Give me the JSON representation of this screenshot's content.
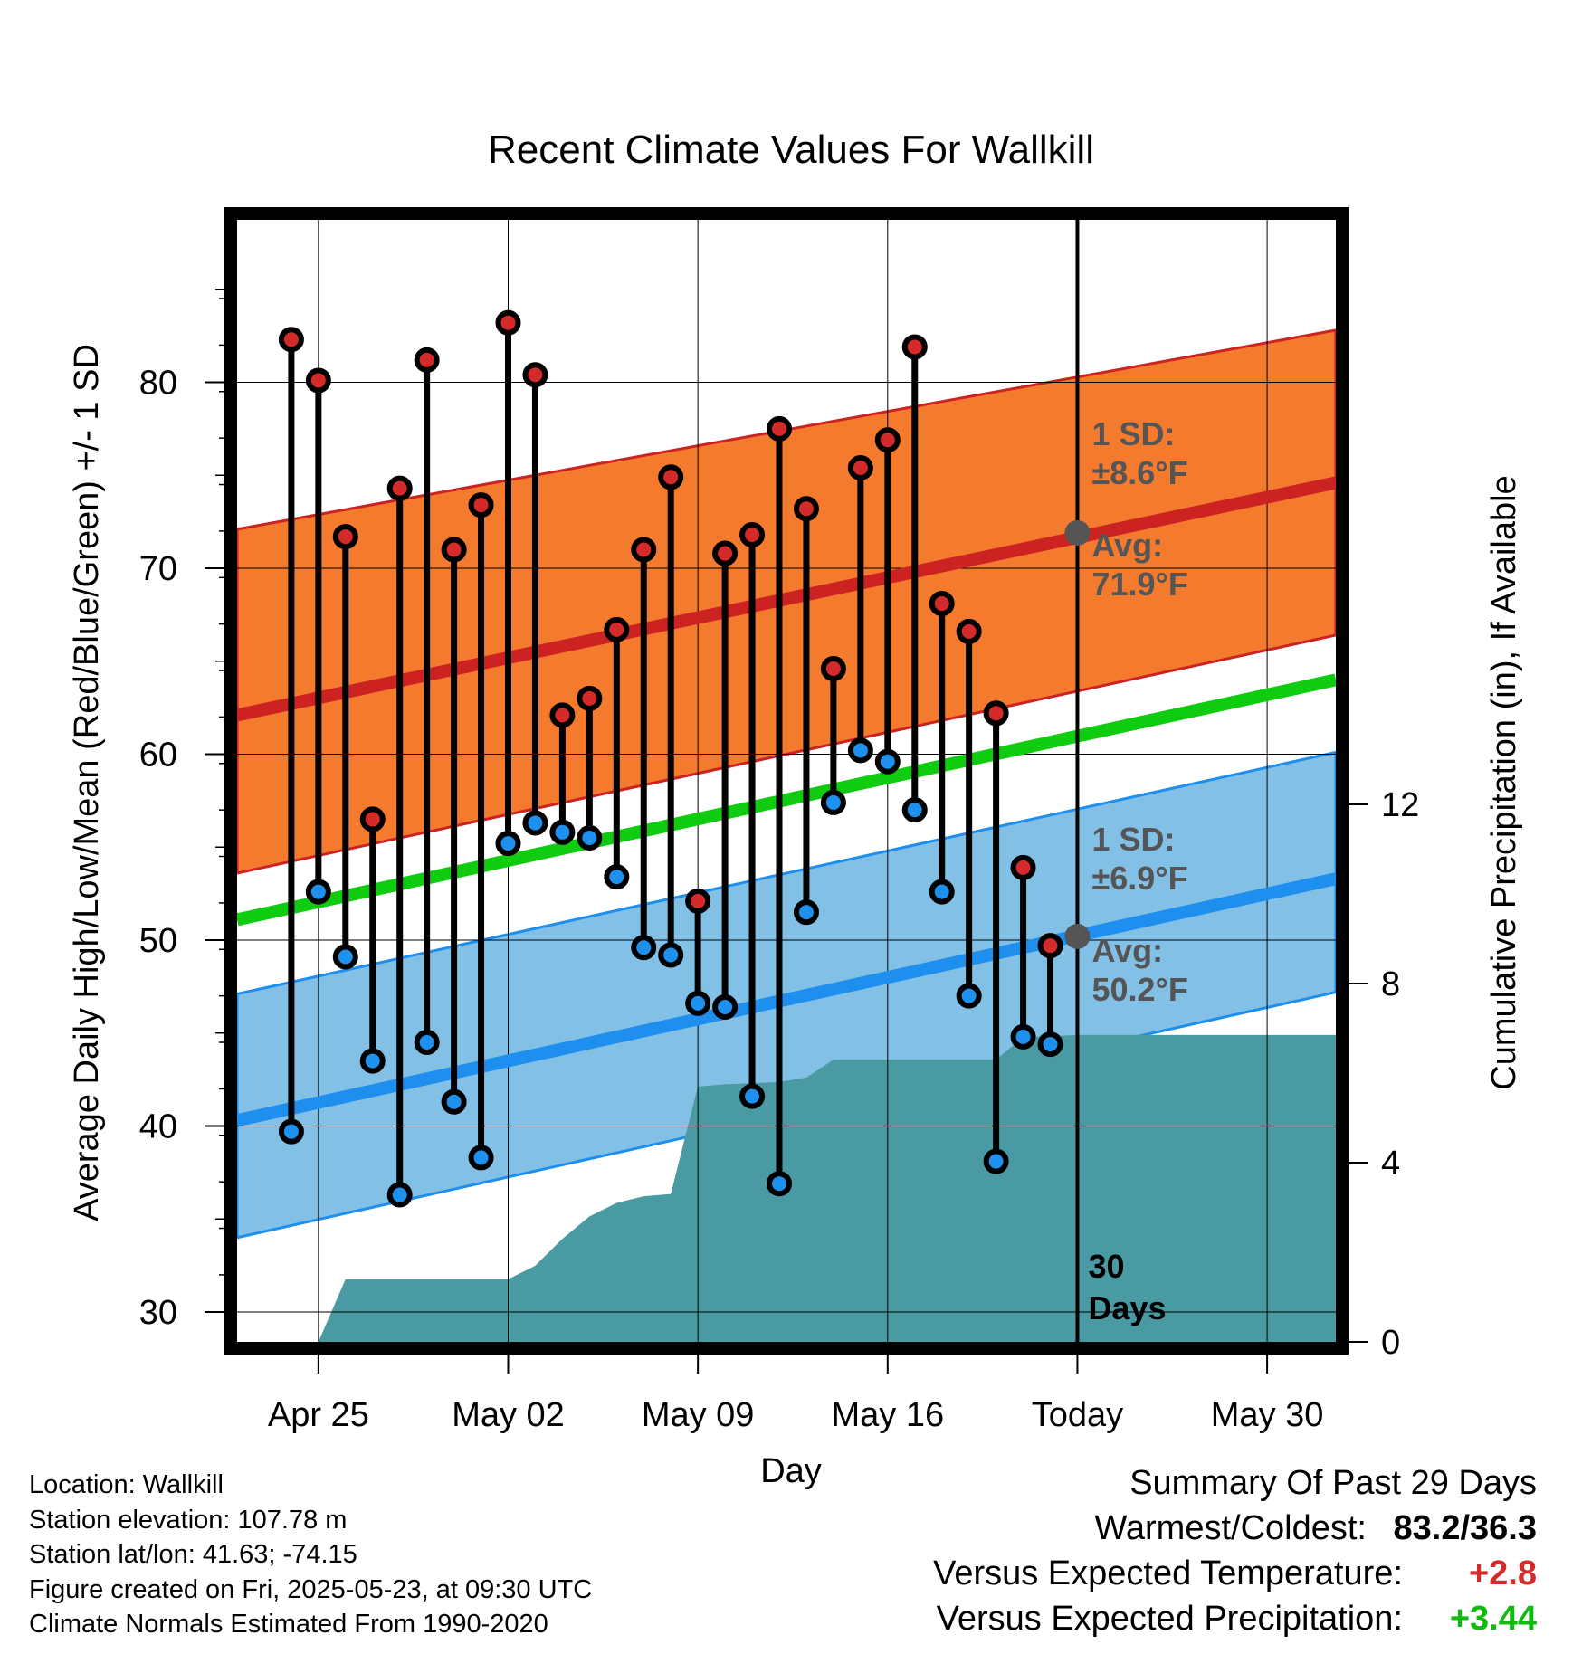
{
  "chart_data": {
    "type": "line",
    "title": "Recent Climate Values For Wallkill",
    "xlabel": "Day",
    "ylabel_left": "Average Daily High/Low/Mean (Red/Blue/Green) +/- 1 SD",
    "ylabel_right": "Cumulative Precipitation (in), If Available",
    "x_ticks": [
      "Apr 25",
      "May 02",
      "May 09",
      "May 16",
      "Today",
      "May 30"
    ],
    "y_ticks_left": [
      "30",
      "40",
      "50",
      "60",
      "70",
      "80"
    ],
    "y_ticks_right": [
      "0",
      "4",
      "8",
      "12"
    ],
    "ylim_left": [
      28.7,
      87.0
    ],
    "ylim_right": [
      0,
      27.6
    ],
    "xlim": [
      "Apr 22",
      "Jun 01"
    ],
    "grid": true,
    "today": "May 23",
    "window_label": "30 Days",
    "daily": [
      {
        "date": "Apr 24",
        "high": 82.3,
        "low": 39.7
      },
      {
        "date": "Apr 25",
        "high": 80.1,
        "low": 52.6
      },
      {
        "date": "Apr 26",
        "high": 71.7,
        "low": 49.1
      },
      {
        "date": "Apr 27",
        "high": 56.5,
        "low": 43.5
      },
      {
        "date": "Apr 28",
        "high": 74.3,
        "low": 36.3
      },
      {
        "date": "Apr 29",
        "high": 81.2,
        "low": 44.5
      },
      {
        "date": "Apr 30",
        "high": 71.0,
        "low": 41.3
      },
      {
        "date": "May 01",
        "high": 73.4,
        "low": 38.3
      },
      {
        "date": "May 02",
        "high": 83.2,
        "low": 55.2
      },
      {
        "date": "May 03",
        "high": 80.4,
        "low": 56.3
      },
      {
        "date": "May 04",
        "high": 62.1,
        "low": 55.8
      },
      {
        "date": "May 05",
        "high": 63.0,
        "low": 55.5
      },
      {
        "date": "May 06",
        "high": 66.7,
        "low": 53.4
      },
      {
        "date": "May 07",
        "high": 71.0,
        "low": 49.6
      },
      {
        "date": "May 08",
        "high": 74.9,
        "low": 49.2
      },
      {
        "date": "May 09",
        "high": 52.1,
        "low": 46.6
      },
      {
        "date": "May 10",
        "high": 70.8,
        "low": 46.4
      },
      {
        "date": "May 11",
        "high": 71.8,
        "low": 41.6
      },
      {
        "date": "May 12",
        "high": 77.5,
        "low": 36.9
      },
      {
        "date": "May 13",
        "high": 73.2,
        "low": 51.5
      },
      {
        "date": "May 14",
        "high": 64.6,
        "low": 57.4
      },
      {
        "date": "May 15",
        "high": 75.4,
        "low": 60.2
      },
      {
        "date": "May 16",
        "high": 76.9,
        "low": 59.6
      },
      {
        "date": "May 17",
        "high": 81.9,
        "low": 57.0
      },
      {
        "date": "May 18",
        "high": 68.1,
        "low": 52.6
      },
      {
        "date": "May 19",
        "high": 66.6,
        "low": 47.0
      },
      {
        "date": "May 20",
        "high": 62.2,
        "low": 38.1
      },
      {
        "date": "May 21",
        "high": 53.9,
        "low": 44.8
      },
      {
        "date": "May 22",
        "high": 49.7,
        "low": 44.4
      }
    ],
    "normals": {
      "high_avg": {
        "start": 62.1,
        "end": 74.6
      },
      "high_sd_band": {
        "lower_start": 53.6,
        "lower_end": 66.4,
        "upper_start": 72.1,
        "upper_end": 82.8
      },
      "low_avg": {
        "start": 40.3,
        "end": 53.3
      },
      "low_sd_band": {
        "lower_start": 34.0,
        "lower_end": 47.2,
        "upper_start": 47.1,
        "upper_end": 60.1
      },
      "mean_avg": {
        "start": 51.1,
        "end": 64.0
      }
    },
    "precip_cumulative": [
      {
        "date": "Apr 25",
        "value": 0.0
      },
      {
        "date": "Apr 26",
        "value": 1.4
      },
      {
        "date": "Apr 29",
        "value": 1.4
      },
      {
        "date": "May 02",
        "value": 1.4
      },
      {
        "date": "May 03",
        "value": 1.7
      },
      {
        "date": "May 04",
        "value": 2.3
      },
      {
        "date": "May 05",
        "value": 2.8
      },
      {
        "date": "May 06",
        "value": 3.1
      },
      {
        "date": "May 07",
        "value": 3.25
      },
      {
        "date": "May 08",
        "value": 3.3
      },
      {
        "date": "May 09",
        "value": 5.7
      },
      {
        "date": "May 10",
        "value": 5.75
      },
      {
        "date": "May 12",
        "value": 5.8
      },
      {
        "date": "May 13",
        "value": 5.9
      },
      {
        "date": "May 14",
        "value": 6.3
      },
      {
        "date": "May 20",
        "value": 6.3
      },
      {
        "date": "May 21",
        "value": 6.8
      },
      {
        "date": "May 23",
        "value": 6.85
      },
      {
        "date": "Jun 01",
        "value": 6.85
      }
    ],
    "annotations": {
      "high": {
        "sd_label": "1 SD:",
        "sd_value": "±8.6°F",
        "avg_label": "Avg:",
        "avg_value": "71.9°F",
        "avg_today": 71.9
      },
      "low": {
        "sd_label": "1 SD:",
        "sd_value": "±6.9°F",
        "avg_label": "Avg:",
        "avg_value": "50.2°F",
        "avg_today": 50.2
      }
    },
    "colors": {
      "high_band": "#F47A2E",
      "high_line": "#CC2222",
      "low_band": "#82C0E6",
      "low_line": "#1E8FEF",
      "mean_line": "#10CC10",
      "precip": "#4A9AA3",
      "high_marker": "#D42A2A",
      "low_marker": "#1E90EE",
      "today_marker": "#555555"
    }
  },
  "info": {
    "location": "Location: Wallkill",
    "elevation": "Station elevation: 107.78 m",
    "latlon": "Station lat/lon: 41.63; -74.15",
    "created": "Figure created on Fri, 2025-05-23, at 09:30 UTC",
    "normals": "Climate Normals Estimated From 1990-2020"
  },
  "summary": {
    "heading": "Summary Of Past 29 Days",
    "warm_cold_label": "Warmest/Coldest:",
    "warm_cold_value": "83.2/36.3",
    "temp_label": "Versus Expected Temperature:",
    "temp_value": "+2.8",
    "temp_color": "#D42A2A",
    "precip_label": "Versus Expected Precipitation:",
    "precip_value": "+3.44",
    "precip_color": "#10BB10"
  }
}
